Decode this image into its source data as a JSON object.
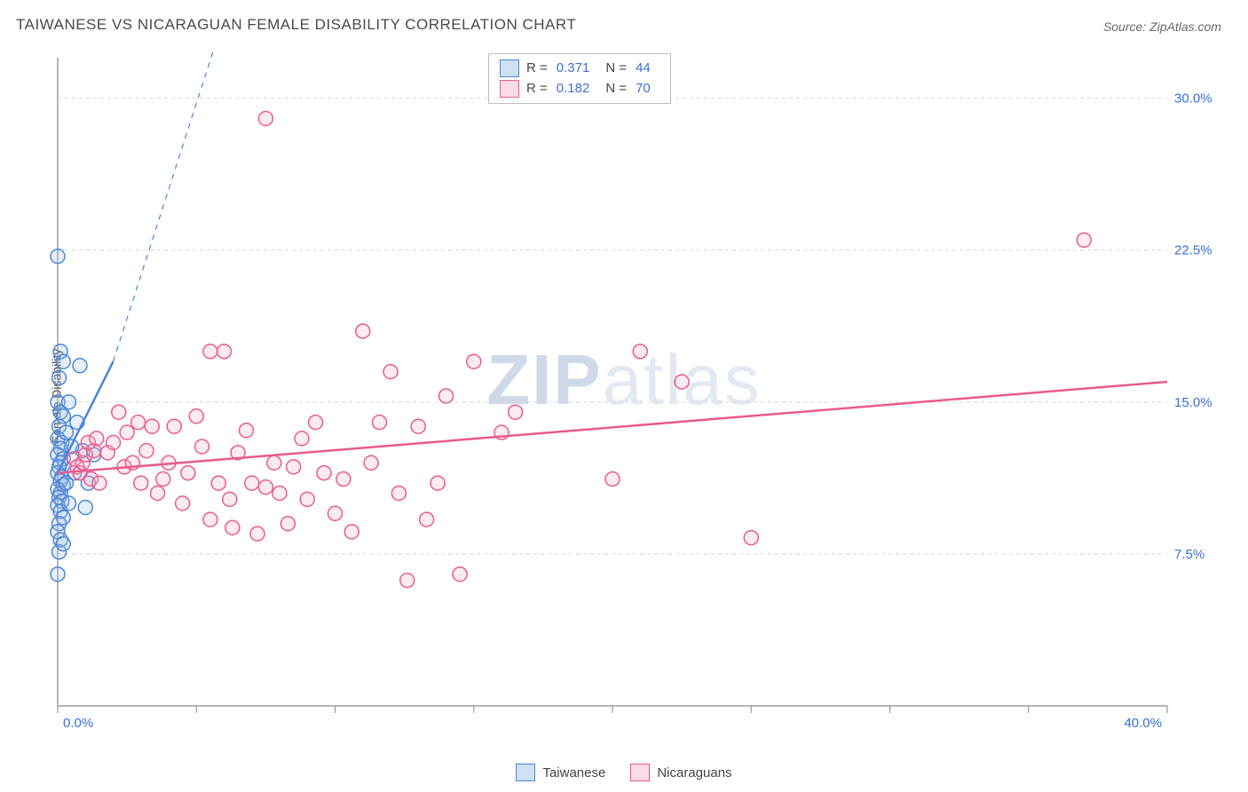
{
  "title": "TAIWANESE VS NICARAGUAN FEMALE DISABILITY CORRELATION CHART",
  "source_label": "Source: ZipAtlas.com",
  "y_axis_label": "Female Disability",
  "watermark_bold": "ZIP",
  "watermark_rest": "atlas",
  "chart": {
    "type": "scatter",
    "background": "#ffffff",
    "grid_color": "#d7d7d7",
    "grid_dash": "4,4",
    "axis_color": "#8a8a8a",
    "tick_color": "#8a8a8a",
    "axis_label_color": "#3b6fd6",
    "xlim": [
      0,
      40
    ],
    "ylim": [
      0,
      32
    ],
    "x_ticks_minor": [
      0,
      5,
      10,
      15,
      20,
      25,
      30,
      35,
      40
    ],
    "x_ticks_labeled": [
      {
        "v": 0,
        "label": "0.0%"
      },
      {
        "v": 40,
        "label": "40.0%"
      }
    ],
    "y_gridlines": [
      7.5,
      15.0,
      22.5,
      30.0
    ],
    "y_ticks_labeled": [
      {
        "v": 7.5,
        "label": "7.5%"
      },
      {
        "v": 15.0,
        "label": "15.0%"
      },
      {
        "v": 22.5,
        "label": "22.5%"
      },
      {
        "v": 30.0,
        "label": "30.0%"
      }
    ],
    "marker_radius": 8,
    "marker_stroke_width": 1.5,
    "marker_fill_opacity": 0.25,
    "series": [
      {
        "name": "Taiwanese",
        "color_stroke": "#4a86d8",
        "color_fill": "#9abde8",
        "R": "0.371",
        "N": "44",
        "trend": {
          "x1": 0,
          "y1": 11.5,
          "x2": 2.0,
          "y2": 17.0,
          "width": 2.5,
          "dash_ext_x": 6,
          "dash_ext_y": 34
        },
        "points": [
          [
            0.0,
            22.2
          ],
          [
            0.1,
            17.5
          ],
          [
            0.2,
            17.0
          ],
          [
            0.05,
            16.2
          ],
          [
            0.0,
            15.0
          ],
          [
            0.1,
            14.5
          ],
          [
            0.2,
            14.3
          ],
          [
            0.05,
            13.8
          ],
          [
            0.0,
            13.2
          ],
          [
            0.15,
            13.0
          ],
          [
            0.1,
            12.7
          ],
          [
            0.0,
            12.4
          ],
          [
            0.2,
            12.2
          ],
          [
            0.1,
            12.0
          ],
          [
            0.05,
            11.8
          ],
          [
            0.0,
            11.5
          ],
          [
            0.15,
            11.3
          ],
          [
            0.1,
            11.1
          ],
          [
            0.2,
            10.9
          ],
          [
            0.0,
            10.7
          ],
          [
            0.1,
            10.5
          ],
          [
            0.05,
            10.3
          ],
          [
            0.15,
            10.1
          ],
          [
            0.0,
            9.9
          ],
          [
            0.1,
            9.6
          ],
          [
            0.2,
            9.3
          ],
          [
            0.05,
            9.0
          ],
          [
            0.0,
            8.6
          ],
          [
            0.1,
            8.2
          ],
          [
            0.05,
            7.6
          ],
          [
            0.0,
            6.5
          ],
          [
            0.8,
            16.8
          ],
          [
            0.7,
            14.0
          ],
          [
            0.9,
            12.6
          ],
          [
            1.1,
            11.0
          ],
          [
            1.3,
            12.4
          ],
          [
            1.0,
            9.8
          ],
          [
            0.6,
            11.5
          ],
          [
            0.5,
            12.8
          ],
          [
            0.4,
            10.0
          ],
          [
            0.3,
            11.0
          ],
          [
            0.3,
            13.5
          ],
          [
            0.4,
            15.0
          ],
          [
            0.2,
            8.0
          ]
        ]
      },
      {
        "name": "Nicaraguans",
        "color_stroke": "#ea5a8d",
        "color_fill": "#f5b1c6",
        "R": "0.182",
        "N": "70",
        "trend": {
          "x1": 0,
          "y1": 11.5,
          "x2": 40,
          "y2": 16.0,
          "width": 2.5
        },
        "points": [
          [
            0.6,
            12.2
          ],
          [
            0.7,
            11.8
          ],
          [
            0.8,
            11.5
          ],
          [
            0.9,
            12.0
          ],
          [
            1.0,
            12.4
          ],
          [
            1.1,
            13.0
          ],
          [
            1.2,
            11.2
          ],
          [
            1.3,
            12.6
          ],
          [
            1.4,
            13.2
          ],
          [
            1.5,
            11.0
          ],
          [
            1.8,
            12.5
          ],
          [
            2.0,
            13.0
          ],
          [
            2.2,
            14.5
          ],
          [
            2.4,
            11.8
          ],
          [
            2.5,
            13.5
          ],
          [
            2.7,
            12.0
          ],
          [
            2.9,
            14.0
          ],
          [
            3.0,
            11.0
          ],
          [
            3.2,
            12.6
          ],
          [
            3.4,
            13.8
          ],
          [
            3.6,
            10.5
          ],
          [
            3.8,
            11.2
          ],
          [
            4.0,
            12.0
          ],
          [
            4.2,
            13.8
          ],
          [
            4.5,
            10.0
          ],
          [
            4.7,
            11.5
          ],
          [
            5.0,
            14.3
          ],
          [
            5.2,
            12.8
          ],
          [
            5.5,
            9.2
          ],
          [
            5.8,
            11.0
          ],
          [
            6.0,
            17.5
          ],
          [
            6.2,
            10.2
          ],
          [
            6.5,
            12.5
          ],
          [
            6.8,
            13.6
          ],
          [
            7.0,
            11.0
          ],
          [
            7.2,
            8.5
          ],
          [
            7.5,
            29.0
          ],
          [
            7.5,
            10.8
          ],
          [
            7.8,
            12.0
          ],
          [
            8.0,
            10.5
          ],
          [
            8.3,
            9.0
          ],
          [
            8.5,
            11.8
          ],
          [
            8.8,
            13.2
          ],
          [
            9.0,
            10.2
          ],
          [
            9.3,
            14.0
          ],
          [
            9.6,
            11.5
          ],
          [
            10.0,
            9.5
          ],
          [
            10.3,
            11.2
          ],
          [
            10.6,
            8.6
          ],
          [
            11.0,
            18.5
          ],
          [
            11.3,
            12.0
          ],
          [
            11.6,
            14.0
          ],
          [
            12.0,
            16.5
          ],
          [
            12.3,
            10.5
          ],
          [
            12.6,
            6.2
          ],
          [
            13.0,
            13.8
          ],
          [
            13.3,
            9.2
          ],
          [
            13.7,
            11.0
          ],
          [
            14.0,
            15.3
          ],
          [
            14.5,
            6.5
          ],
          [
            15.0,
            17.0
          ],
          [
            16.0,
            13.5
          ],
          [
            16.5,
            14.5
          ],
          [
            20.0,
            11.2
          ],
          [
            21.0,
            17.5
          ],
          [
            22.5,
            16.0
          ],
          [
            25.0,
            8.3
          ],
          [
            37.0,
            23.0
          ],
          [
            5.5,
            17.5
          ],
          [
            6.3,
            8.8
          ]
        ]
      }
    ]
  },
  "legend_top": {
    "rows": [
      {
        "swatch_fill": "#cfe0f5",
        "swatch_stroke": "#4a86d8",
        "r_label": "R =",
        "r_val": "0.371",
        "n_label": "N =",
        "n_val": "44"
      },
      {
        "swatch_fill": "#fbdbe5",
        "swatch_stroke": "#ea5a8d",
        "r_label": "R =",
        "r_val": "0.182",
        "n_label": "N =",
        "n_val": "70"
      }
    ]
  },
  "legend_bottom": [
    {
      "swatch_fill": "#cfe0f5",
      "swatch_stroke": "#4a86d8",
      "label": "Taiwanese"
    },
    {
      "swatch_fill": "#fbdbe5",
      "swatch_stroke": "#ea5a8d",
      "label": "Nicaraguans"
    }
  ]
}
